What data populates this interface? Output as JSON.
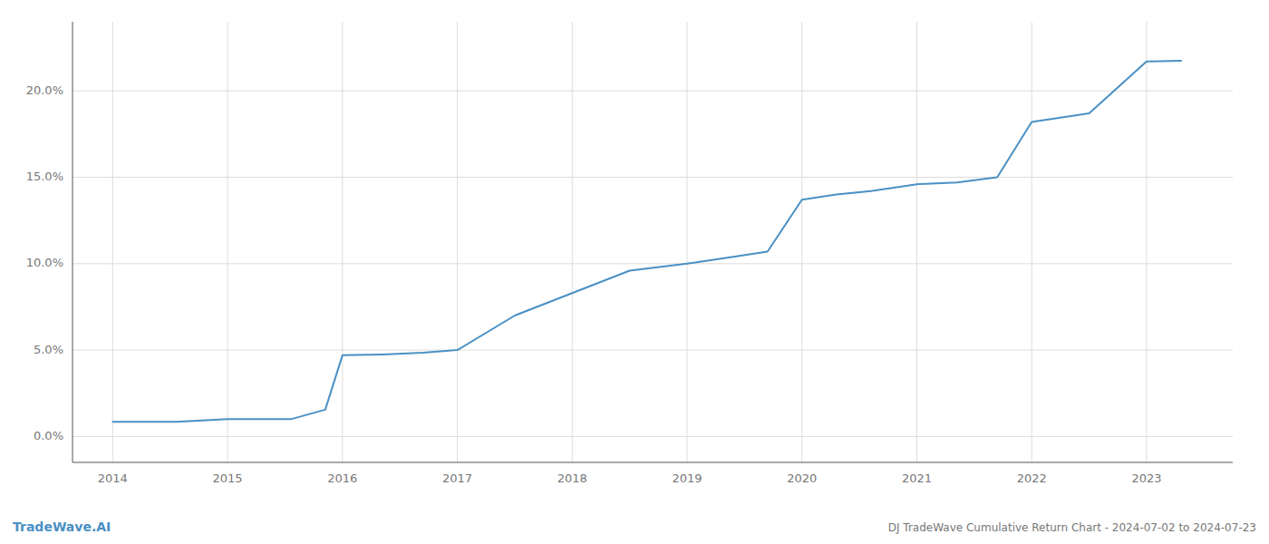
{
  "chart_data": {
    "type": "line",
    "title": "DJ TradeWave Cumulative Return Chart - 2024-07-02 to 2024-07-23",
    "annotations": [
      "TradeWave.AI"
    ],
    "color": "#4a90c4",
    "x": [
      2014.0,
      2014.55,
      2015.0,
      2015.55,
      2015.85,
      2016.0,
      2016.35,
      2016.7,
      2017.0,
      2017.5,
      2018.0,
      2018.5,
      2019.0,
      2019.35,
      2019.7,
      2020.0,
      2020.3,
      2020.6,
      2021.0,
      2021.35,
      2021.7,
      2022.0,
      2022.5,
      2023.0,
      2023.3
    ],
    "values": [
      0.85,
      0.85,
      1.0,
      1.0,
      1.55,
      4.7,
      4.75,
      4.85,
      5.0,
      7.0,
      8.3,
      9.6,
      10.0,
      10.35,
      10.7,
      13.7,
      14.0,
      14.2,
      14.6,
      14.7,
      15.0,
      18.2,
      18.7,
      21.7,
      21.75
    ],
    "xlim": [
      2013.65,
      2023.75
    ],
    "ylim": [
      -1.5,
      24.0
    ],
    "xticks": [
      2014,
      2015,
      2016,
      2017,
      2018,
      2019,
      2020,
      2021,
      2022,
      2023
    ],
    "yticks": [
      {
        "value": 0.0,
        "label": "0.0%"
      },
      {
        "value": 5.0,
        "label": "5.0%"
      },
      {
        "value": 10.0,
        "label": "10.0%"
      },
      {
        "value": 15.0,
        "label": "15.0%"
      },
      {
        "value": 20.0,
        "label": "20.0%"
      }
    ],
    "grid": true
  }
}
